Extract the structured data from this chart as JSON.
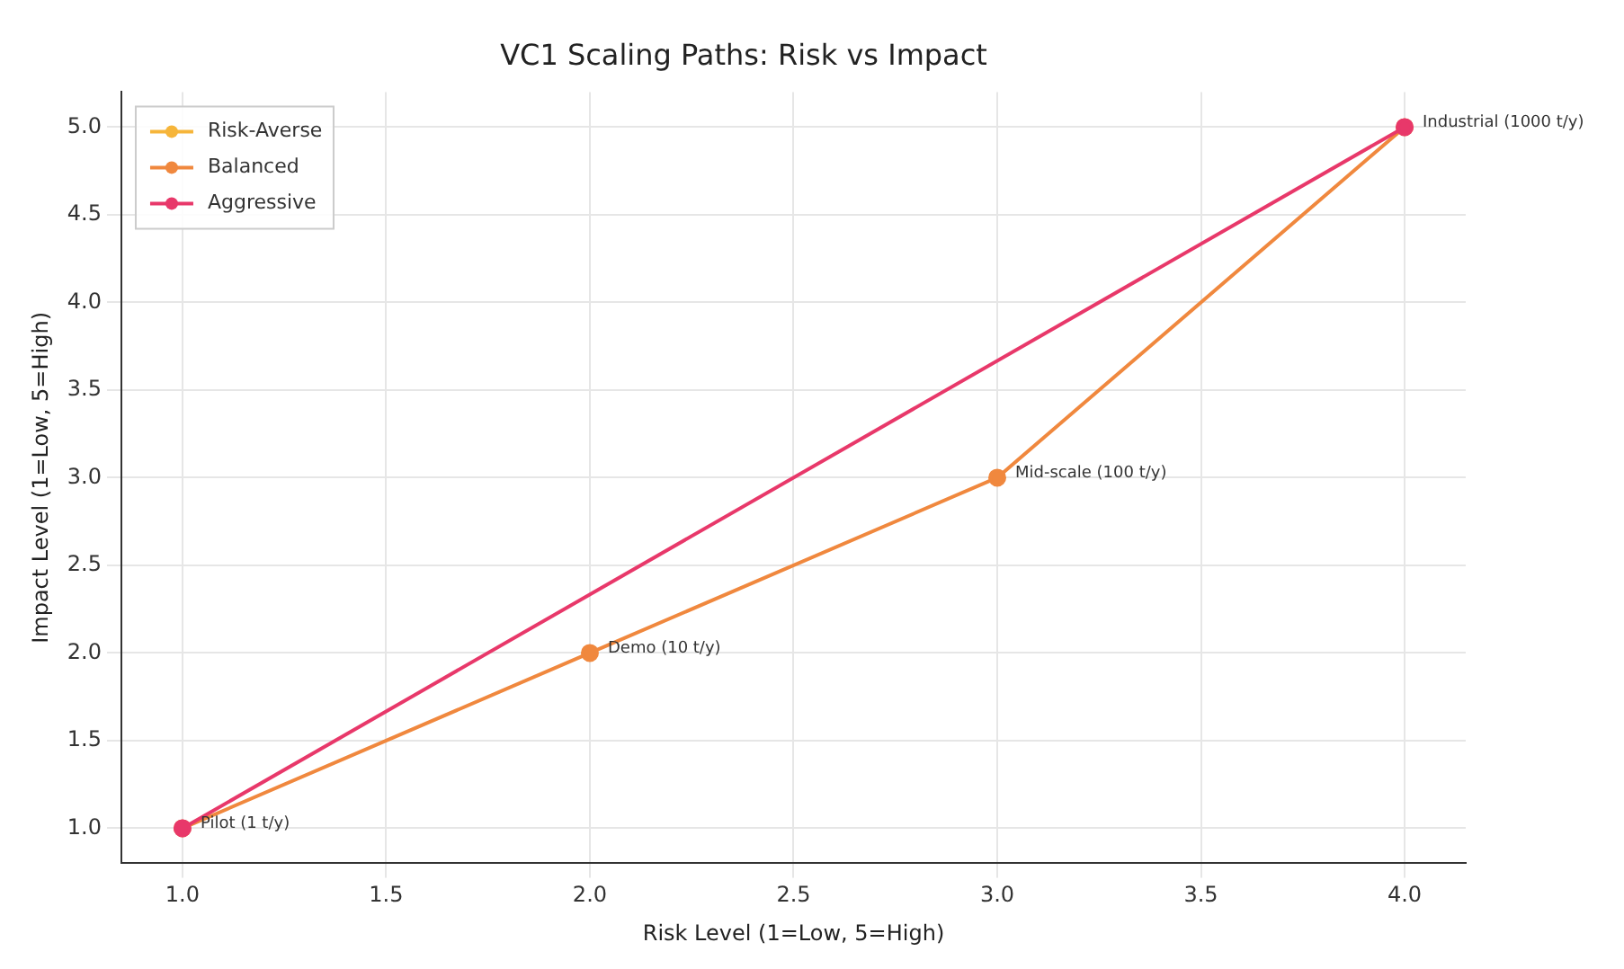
{
  "chart_data": {
    "type": "line",
    "title": "VC1 Scaling Paths: Risk vs Impact",
    "xlabel": "Risk Level (1=Low, 5=High)",
    "ylabel": "Impact Level (1=Low, 5=High)",
    "x": [
      1,
      2,
      3,
      4
    ],
    "series": [
      {
        "name": "Risk-Averse",
        "color": "#f6b53a",
        "values": [
          null,
          null,
          null,
          null
        ]
      },
      {
        "name": "Balanced",
        "color": "#f0883e",
        "values": [
          1,
          2,
          3,
          5
        ]
      },
      {
        "name": "Aggressive",
        "color": "#e8386a",
        "x": [
          1,
          4
        ],
        "values": [
          1,
          5
        ]
      }
    ],
    "xlim": [
      0.85,
      4.15
    ],
    "xticks": [
      {
        "value": 1,
        "label": "1.0"
      },
      1.5,
      {
        "value": 2,
        "label": "2.0"
      },
      2.5,
      {
        "value": 3,
        "label": "3.0"
      },
      3.5,
      {
        "value": 4,
        "label": "4.0"
      }
    ],
    "ylim": [
      0.8,
      5.2
    ],
    "yticks": [
      {
        "value": 1,
        "label": "1.0"
      },
      1.5,
      {
        "value": 2,
        "label": "2.0"
      },
      2.5,
      {
        "value": 3,
        "label": "3.0"
      },
      3.5,
      {
        "value": 4,
        "label": "4.0"
      },
      4.5,
      {
        "value": 5,
        "label": "5.0"
      }
    ],
    "grid": true,
    "legend": "top left",
    "marker": "circle",
    "line_style": "solid",
    "annotations": [
      {
        "text": "Pilot (1 t/y)",
        "x": 1,
        "y": 1
      },
      {
        "text": "Demo (10 t/y)",
        "x": 2,
        "y": 2
      },
      {
        "text": "Mid-scale (100 t/y)",
        "x": 3,
        "y": 3
      },
      {
        "text": "Industrial (1000 t/y)",
        "x": 4,
        "y": 5
      }
    ]
  }
}
